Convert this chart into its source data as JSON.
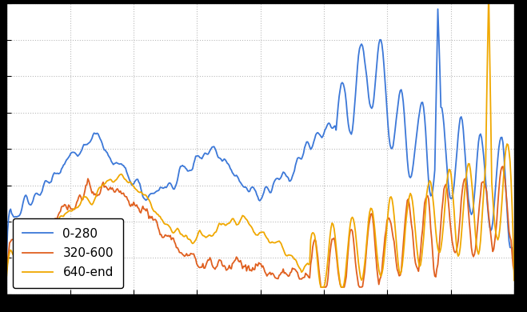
{
  "line1_label": "0-280",
  "line2_label": "320-600",
  "line3_label": "640-end",
  "line1_color": "#3c78d8",
  "line2_color": "#e06020",
  "line3_color": "#f0a800",
  "background_color": "#ffffff",
  "outer_color": "#000000",
  "grid_color": "#bbbbbb",
  "linewidth": 1.3,
  "legend_loc": "lower left",
  "legend_fontsize": 11,
  "figsize": [
    6.59,
    3.9
  ],
  "dpi": 100
}
